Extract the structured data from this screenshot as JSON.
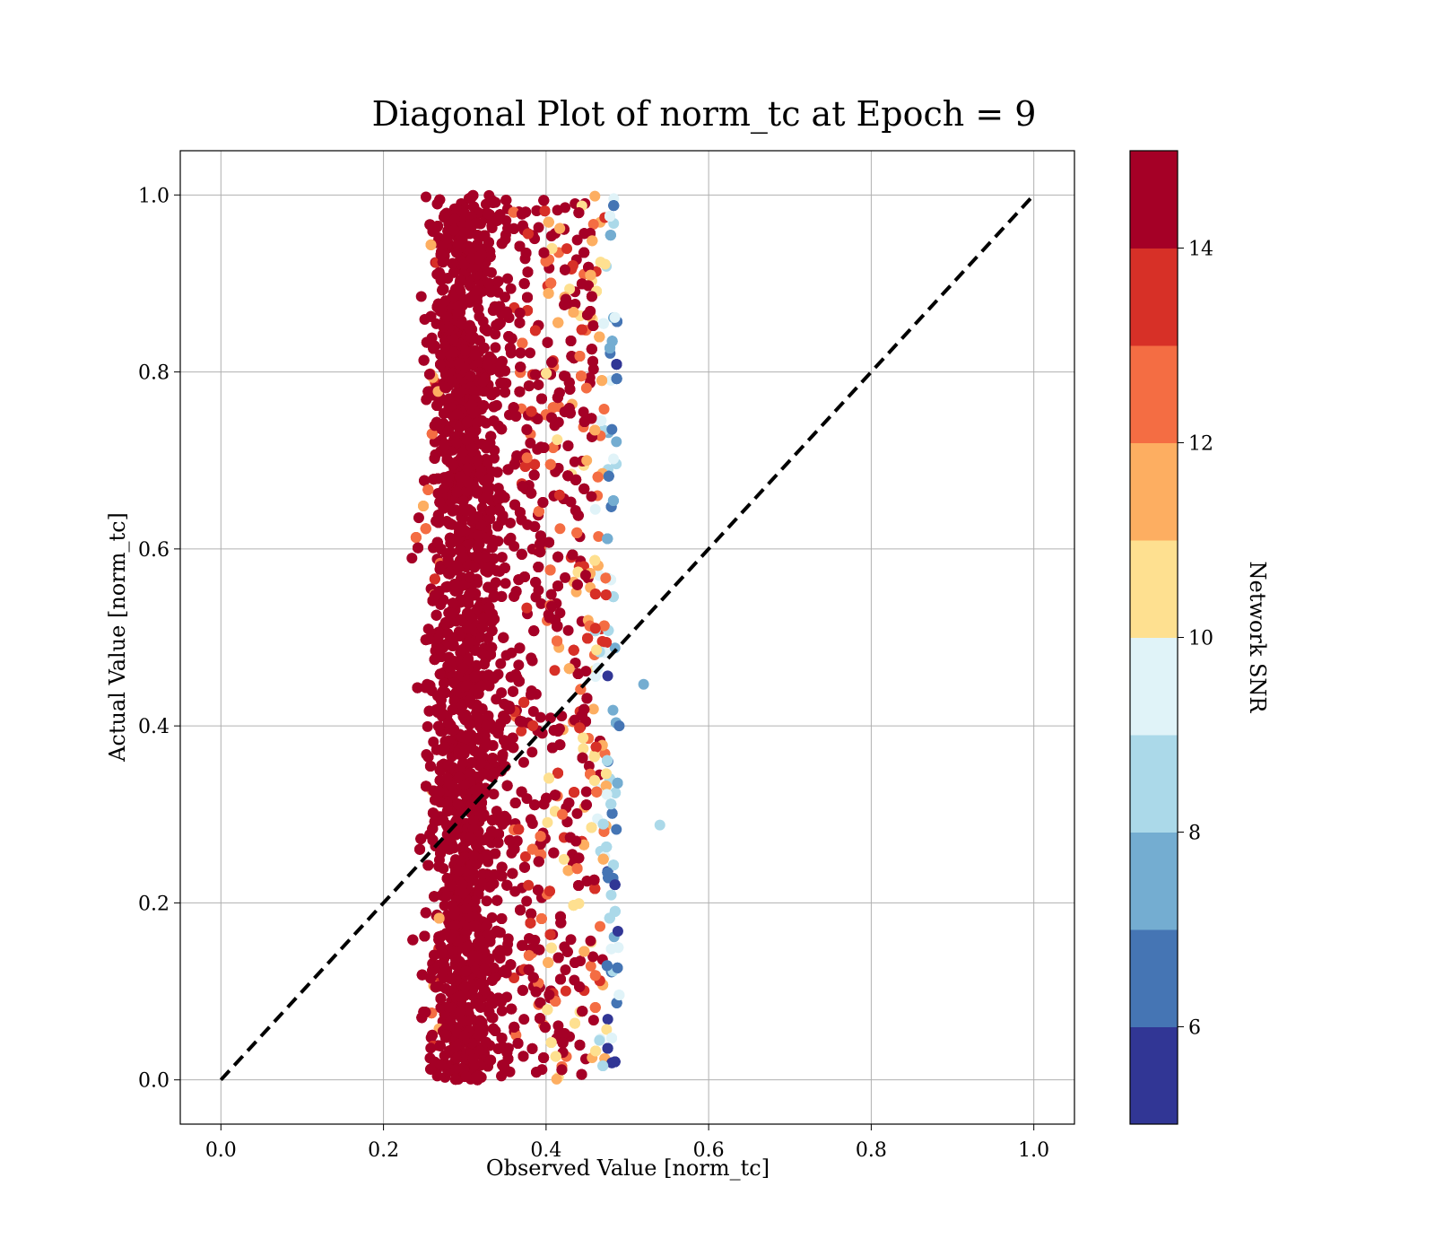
{
  "chart_data": {
    "type": "scatter",
    "title": "Diagonal Plot of norm_tc at Epoch = 9",
    "xlabel": "Observed Value [norm_tc]",
    "ylabel": "Actual Value [norm_tc]",
    "xlim": [
      -0.05,
      1.05
    ],
    "ylim": [
      -0.05,
      1.05
    ],
    "xticks": [
      "0.0",
      "0.2",
      "0.4",
      "0.6",
      "0.8",
      "1.0"
    ],
    "yticks": [
      "0.0",
      "0.2",
      "0.4",
      "0.6",
      "0.8",
      "1.0"
    ],
    "grid": true,
    "reference_line": {
      "style": "dashed",
      "color": "#000000",
      "from": [
        0,
        0
      ],
      "to": [
        1,
        1
      ]
    },
    "series": [
      {
        "color_by": "Network SNR",
        "description_points": [
          {
            "x": 0.3,
            "y": 0.05,
            "snr": 15
          },
          {
            "x": 0.32,
            "y": 0.5,
            "snr": 15
          },
          {
            "x": 0.35,
            "y": 0.95,
            "snr": 15
          },
          {
            "x": 0.42,
            "y": 0.3,
            "snr": 12
          },
          {
            "x": 0.45,
            "y": 0.7,
            "snr": 11
          },
          {
            "x": 0.49,
            "y": 0.4,
            "snr": 6
          },
          {
            "x": 0.54,
            "y": 0.288,
            "snr": 8.5
          },
          {
            "x": 0.52,
            "y": 0.447,
            "snr": 7.5
          }
        ],
        "x_range": [
          0.23,
          0.54
        ],
        "y_range": [
          0.0,
          1.0
        ]
      }
    ],
    "colorbar": {
      "label": "Network SNR",
      "range": [
        5,
        15
      ],
      "ticks": [
        "6",
        "8",
        "10",
        "12",
        "14"
      ],
      "colors": [
        "#313695",
        "#4575b4",
        "#74add1",
        "#abd9e9",
        "#e0f3f8",
        "#fee090",
        "#fdae61",
        "#f46d43",
        "#d73027",
        "#a50026"
      ]
    }
  }
}
